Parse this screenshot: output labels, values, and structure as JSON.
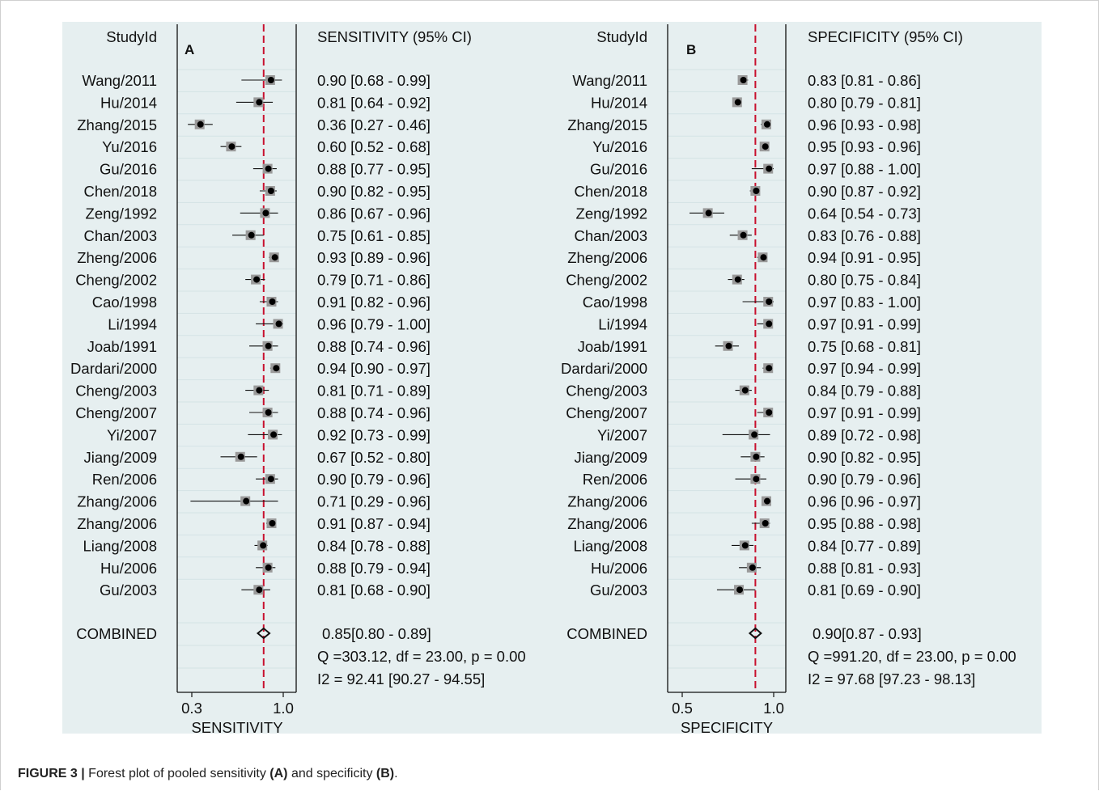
{
  "caption": {
    "label": "FIGURE 3 |",
    "pre": " Forest plot of pooled sensitivity ",
    "a": "(A)",
    "mid": " and specificity ",
    "b": "(B)",
    "post": "."
  },
  "chart_data": [
    {
      "type": "forest",
      "panel_letter": "A",
      "study_header": "StudyId",
      "estimate_header": "SENSITIVITY (95% CI)",
      "xlabel": "SENSITIVITY",
      "xlim": [
        0.3,
        1.0
      ],
      "xticks": [
        "0.3",
        "1.0"
      ],
      "reference_line": 0.85,
      "ref_color": "#c8102e",
      "studies": [
        {
          "name": "Wang/2011",
          "est": 0.9,
          "lo": 0.68,
          "hi": 0.99,
          "label": "0.90 [0.68 - 0.99]"
        },
        {
          "name": "Hu/2014",
          "est": 0.81,
          "lo": 0.64,
          "hi": 0.92,
          "label": "0.81 [0.64 - 0.92]"
        },
        {
          "name": "Zhang/2015",
          "est": 0.36,
          "lo": 0.27,
          "hi": 0.46,
          "label": "0.36 [0.27 - 0.46]"
        },
        {
          "name": "Yu/2016",
          "est": 0.6,
          "lo": 0.52,
          "hi": 0.68,
          "label": "0.60 [0.52 - 0.68]"
        },
        {
          "name": "Gu/2016",
          "est": 0.88,
          "lo": 0.77,
          "hi": 0.95,
          "label": "0.88 [0.77 - 0.95]"
        },
        {
          "name": "Chen/2018",
          "est": 0.9,
          "lo": 0.82,
          "hi": 0.95,
          "label": "0.90 [0.82 - 0.95]"
        },
        {
          "name": "Zeng/1992",
          "est": 0.86,
          "lo": 0.67,
          "hi": 0.96,
          "label": "0.86 [0.67 - 0.96]"
        },
        {
          "name": "Chan/2003",
          "est": 0.75,
          "lo": 0.61,
          "hi": 0.85,
          "label": "0.75 [0.61 - 0.85]"
        },
        {
          "name": "Zheng/2006",
          "est": 0.93,
          "lo": 0.89,
          "hi": 0.96,
          "label": "0.93 [0.89 - 0.96]"
        },
        {
          "name": "Cheng/2002",
          "est": 0.79,
          "lo": 0.71,
          "hi": 0.86,
          "label": "0.79 [0.71 - 0.86]"
        },
        {
          "name": "Cao/1998",
          "est": 0.91,
          "lo": 0.82,
          "hi": 0.96,
          "label": "0.91 [0.82 - 0.96]"
        },
        {
          "name": "Li/1994",
          "est": 0.96,
          "lo": 0.79,
          "hi": 1.0,
          "label": "0.96 [0.79 - 1.00]"
        },
        {
          "name": "Joab/1991",
          "est": 0.88,
          "lo": 0.74,
          "hi": 0.96,
          "label": "0.88 [0.74 - 0.96]"
        },
        {
          "name": "Dardari/2000",
          "est": 0.94,
          "lo": 0.9,
          "hi": 0.97,
          "label": "0.94 [0.90 - 0.97]"
        },
        {
          "name": "Cheng/2003",
          "est": 0.81,
          "lo": 0.71,
          "hi": 0.89,
          "label": "0.81 [0.71 - 0.89]"
        },
        {
          "name": "Cheng/2007",
          "est": 0.88,
          "lo": 0.74,
          "hi": 0.96,
          "label": "0.88 [0.74 - 0.96]"
        },
        {
          "name": "Yi/2007",
          "est": 0.92,
          "lo": 0.73,
          "hi": 0.99,
          "label": "0.92 [0.73 - 0.99]"
        },
        {
          "name": "Jiang/2009",
          "est": 0.67,
          "lo": 0.52,
          "hi": 0.8,
          "label": "0.67 [0.52 - 0.80]"
        },
        {
          "name": "Ren/2006",
          "est": 0.9,
          "lo": 0.79,
          "hi": 0.96,
          "label": "0.90 [0.79 - 0.96]"
        },
        {
          "name": "Zhang/2006",
          "est": 0.71,
          "lo": 0.29,
          "hi": 0.96,
          "label": "0.71 [0.29 - 0.96]"
        },
        {
          "name": "Zhang/2006",
          "est": 0.91,
          "lo": 0.87,
          "hi": 0.94,
          "label": "0.91 [0.87 - 0.94]"
        },
        {
          "name": "Liang/2008",
          "est": 0.84,
          "lo": 0.78,
          "hi": 0.88,
          "label": "0.84 [0.78 - 0.88]"
        },
        {
          "name": "Hu/2006",
          "est": 0.88,
          "lo": 0.79,
          "hi": 0.94,
          "label": "0.88 [0.79 - 0.94]"
        },
        {
          "name": "Gu/2003",
          "est": 0.81,
          "lo": 0.68,
          "hi": 0.9,
          "label": "0.81 [0.68 - 0.90]"
        }
      ],
      "combined": {
        "name": "COMBINED",
        "est": 0.85,
        "lo": 0.8,
        "hi": 0.89,
        "label": "0.85[0.80 - 0.89]"
      },
      "q_stat": "Q =303.12, df = 23.00, p =  0.00",
      "i2_stat": "I2 = 92.41 [90.27 - 94.55]"
    },
    {
      "type": "forest",
      "panel_letter": "B",
      "study_header": "StudyId",
      "estimate_header": "SPECIFICITY (95% CI)",
      "xlabel": "SPECIFICITY",
      "xlim": [
        0.5,
        1.0
      ],
      "xticks": [
        "0.5",
        "1.0"
      ],
      "reference_line": 0.9,
      "ref_color": "#c8102e",
      "studies": [
        {
          "name": "Wang/2011",
          "est": 0.83,
          "lo": 0.81,
          "hi": 0.86,
          "label": "0.83 [0.81 - 0.86]"
        },
        {
          "name": "Hu/2014",
          "est": 0.8,
          "lo": 0.79,
          "hi": 0.81,
          "label": "0.80 [0.79 - 0.81]"
        },
        {
          "name": "Zhang/2015",
          "est": 0.96,
          "lo": 0.93,
          "hi": 0.98,
          "label": "0.96 [0.93 - 0.98]"
        },
        {
          "name": "Yu/2016",
          "est": 0.95,
          "lo": 0.93,
          "hi": 0.96,
          "label": "0.95 [0.93 - 0.96]"
        },
        {
          "name": "Gu/2016",
          "est": 0.97,
          "lo": 0.88,
          "hi": 1.0,
          "label": "0.97 [0.88 - 1.00]"
        },
        {
          "name": "Chen/2018",
          "est": 0.9,
          "lo": 0.87,
          "hi": 0.92,
          "label": "0.90 [0.87 - 0.92]"
        },
        {
          "name": "Zeng/1992",
          "est": 0.64,
          "lo": 0.54,
          "hi": 0.73,
          "label": "0.64 [0.54 - 0.73]"
        },
        {
          "name": "Chan/2003",
          "est": 0.83,
          "lo": 0.76,
          "hi": 0.88,
          "label": "0.83 [0.76 - 0.88]"
        },
        {
          "name": "Zheng/2006",
          "est": 0.94,
          "lo": 0.91,
          "hi": 0.95,
          "label": "0.94 [0.91 - 0.95]"
        },
        {
          "name": "Cheng/2002",
          "est": 0.8,
          "lo": 0.75,
          "hi": 0.84,
          "label": "0.80 [0.75 - 0.84]"
        },
        {
          "name": "Cao/1998",
          "est": 0.97,
          "lo": 0.83,
          "hi": 1.0,
          "label": "0.97 [0.83 - 1.00]"
        },
        {
          "name": "Li/1994",
          "est": 0.97,
          "lo": 0.91,
          "hi": 0.99,
          "label": "0.97 [0.91 - 0.99]"
        },
        {
          "name": "Joab/1991",
          "est": 0.75,
          "lo": 0.68,
          "hi": 0.81,
          "label": "0.75 [0.68 - 0.81]"
        },
        {
          "name": "Dardari/2000",
          "est": 0.97,
          "lo": 0.94,
          "hi": 0.99,
          "label": "0.97 [0.94 - 0.99]"
        },
        {
          "name": "Cheng/2003",
          "est": 0.84,
          "lo": 0.79,
          "hi": 0.88,
          "label": "0.84 [0.79 - 0.88]"
        },
        {
          "name": "Cheng/2007",
          "est": 0.97,
          "lo": 0.91,
          "hi": 0.99,
          "label": "0.97 [0.91 - 0.99]"
        },
        {
          "name": "Yi/2007",
          "est": 0.89,
          "lo": 0.72,
          "hi": 0.98,
          "label": "0.89 [0.72 - 0.98]"
        },
        {
          "name": "Jiang/2009",
          "est": 0.9,
          "lo": 0.82,
          "hi": 0.95,
          "label": "0.90 [0.82 - 0.95]"
        },
        {
          "name": "Ren/2006",
          "est": 0.9,
          "lo": 0.79,
          "hi": 0.96,
          "label": "0.90 [0.79 - 0.96]"
        },
        {
          "name": "Zhang/2006",
          "est": 0.96,
          "lo": 0.96,
          "hi": 0.97,
          "label": "0.96 [0.96 - 0.97]"
        },
        {
          "name": "Zhang/2006",
          "est": 0.95,
          "lo": 0.88,
          "hi": 0.98,
          "label": "0.95 [0.88 - 0.98]"
        },
        {
          "name": "Liang/2008",
          "est": 0.84,
          "lo": 0.77,
          "hi": 0.89,
          "label": "0.84 [0.77 - 0.89]"
        },
        {
          "name": "Hu/2006",
          "est": 0.88,
          "lo": 0.81,
          "hi": 0.93,
          "label": "0.88 [0.81 - 0.93]"
        },
        {
          "name": "Gu/2003",
          "est": 0.81,
          "lo": 0.69,
          "hi": 0.9,
          "label": "0.81 [0.69 - 0.90]"
        }
      ],
      "combined": {
        "name": "COMBINED",
        "est": 0.9,
        "lo": 0.87,
        "hi": 0.93,
        "label": "0.90[0.87 - 0.93]"
      },
      "q_stat": "Q =991.20, df = 23.00, p =  0.00",
      "i2_stat": "I2 = 97.68 [97.23 - 98.13]"
    }
  ]
}
